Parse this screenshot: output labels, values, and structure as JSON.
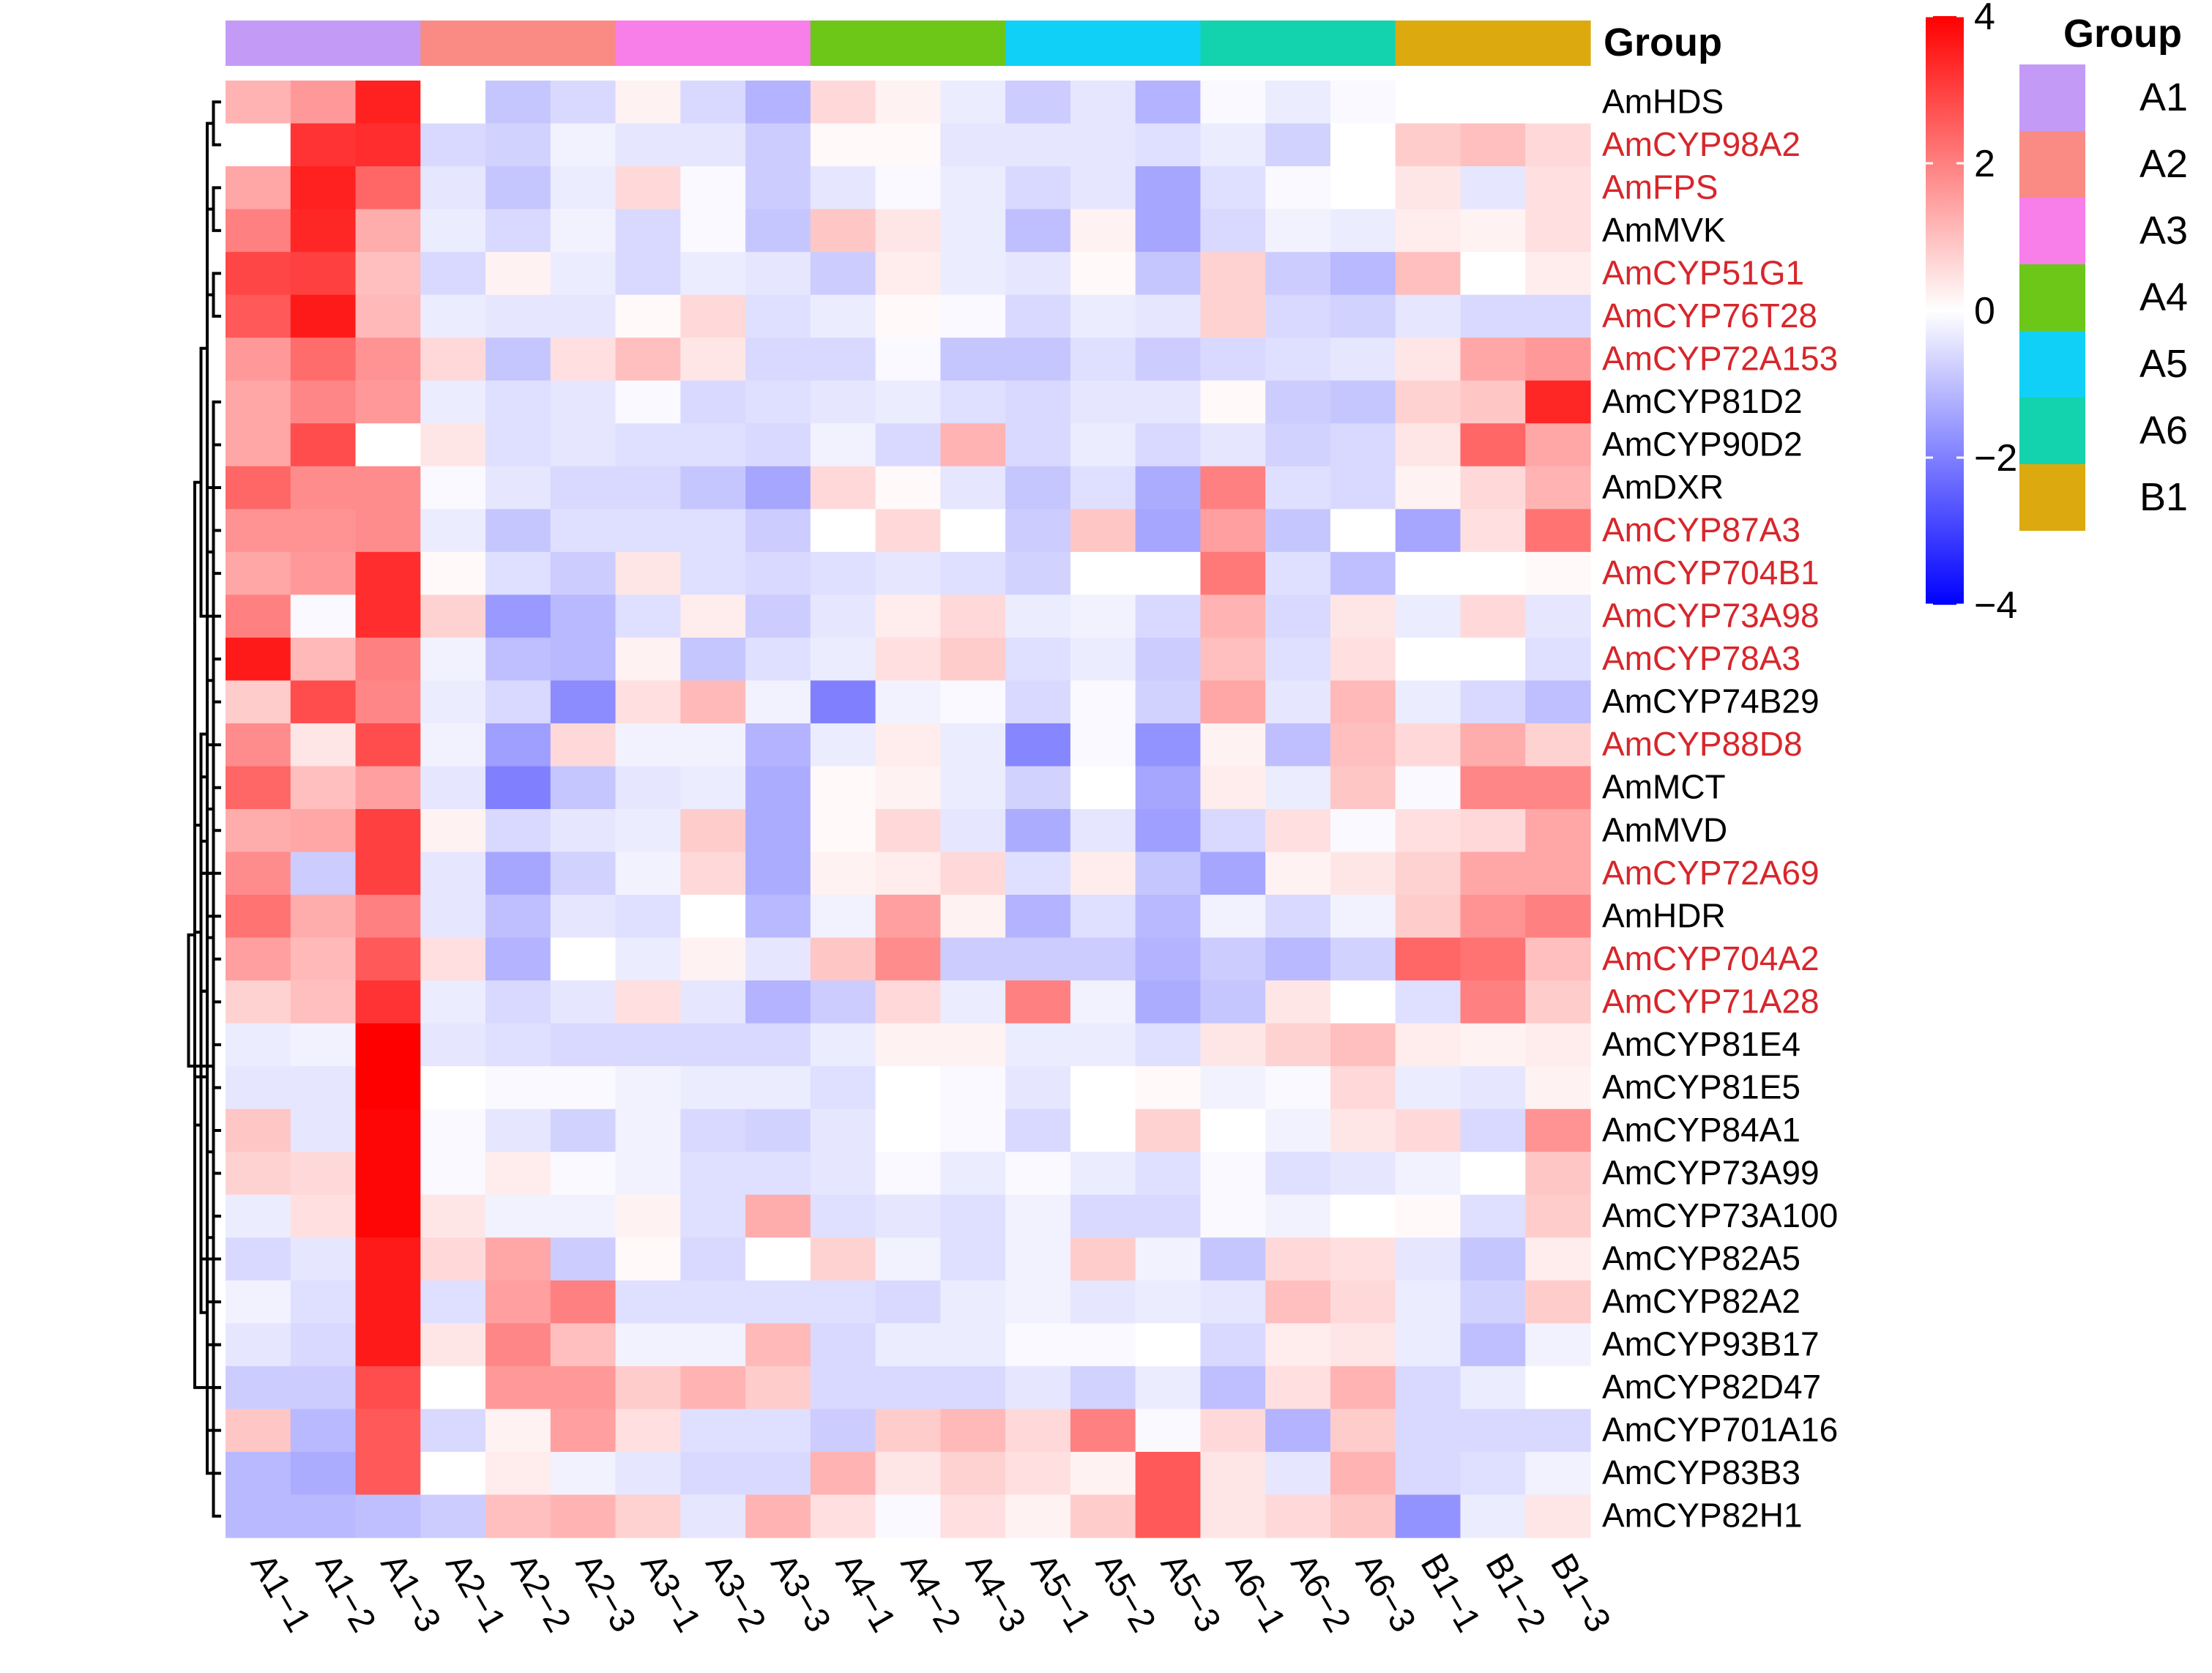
{
  "chart_data": {
    "type": "heatmap",
    "title": "",
    "annotation_title": "Group",
    "legend_title": "Group",
    "columns": [
      "A1−1",
      "A1−2",
      "A1−3",
      "A2−1",
      "A2−2",
      "A2−3",
      "A3−1",
      "A3−2",
      "A3−3",
      "A4−1",
      "A4−2",
      "A4−3",
      "A5−1",
      "A5−2",
      "A5−3",
      "A6−1",
      "A6−2",
      "A6−3",
      "B1−1",
      "B1−2",
      "B1−3"
    ],
    "column_groups": [
      "A1",
      "A1",
      "A1",
      "A2",
      "A2",
      "A2",
      "A3",
      "A3",
      "A3",
      "A4",
      "A4",
      "A4",
      "A5",
      "A5",
      "A5",
      "A6",
      "A6",
      "A6",
      "B1",
      "B1",
      "B1"
    ],
    "groups": [
      {
        "name": "A1",
        "color": "#C39BF7"
      },
      {
        "name": "A2",
        "color": "#F98B84"
      },
      {
        "name": "A3",
        "color": "#F87EEA"
      },
      {
        "name": "A4",
        "color": "#6CC718"
      },
      {
        "name": "A5",
        "color": "#10D0F8"
      },
      {
        "name": "A6",
        "color": "#13D3AE"
      },
      {
        "name": "B1",
        "color": "#DCAA0E"
      }
    ],
    "rows": [
      {
        "gene": "AmHDS",
        "highlight": false,
        "values": [
          1.2,
          1.6,
          3.5,
          0,
          -0.9,
          -0.6,
          0.2,
          -0.6,
          -1.2,
          0.6,
          0.2,
          -0.3,
          -0.8,
          -0.4,
          -1.2,
          -0.1,
          -0.3,
          -0.1,
          0,
          0,
          0
        ]
      },
      {
        "gene": "AmCYP98A2",
        "highlight": true,
        "values": [
          0,
          3.2,
          3.3,
          -0.6,
          -0.7,
          -0.2,
          -0.4,
          -0.4,
          -0.8,
          0.1,
          0.1,
          -0.4,
          -0.4,
          -0.4,
          -0.5,
          -0.3,
          -0.7,
          0,
          0.8,
          1.0,
          0.6
        ]
      },
      {
        "gene": "AmFPS",
        "highlight": true,
        "values": [
          1.4,
          3.5,
          2.4,
          -0.4,
          -0.9,
          -0.3,
          0.6,
          -0.1,
          -0.8,
          -0.4,
          -0.1,
          -0.3,
          -0.6,
          -0.4,
          -1.4,
          -0.5,
          -0.1,
          0,
          0.4,
          -0.4,
          0.5
        ]
      },
      {
        "gene": "AmMVK",
        "highlight": false,
        "values": [
          2.0,
          3.4,
          1.3,
          -0.3,
          -0.6,
          -0.2,
          -0.6,
          -0.1,
          -0.9,
          0.9,
          0.4,
          -0.3,
          -1.0,
          0.2,
          -1.4,
          -0.6,
          -0.2,
          -0.3,
          0.3,
          0.2,
          0.5
        ]
      },
      {
        "gene": "AmCYP51G1",
        "highlight": true,
        "values": [
          2.9,
          3.0,
          1.0,
          -0.6,
          0.2,
          -0.3,
          -0.6,
          -0.3,
          -0.4,
          -0.8,
          0.3,
          -0.3,
          -0.4,
          0.1,
          -0.9,
          0.7,
          -0.8,
          -1.1,
          1.0,
          0,
          0.3
        ]
      },
      {
        "gene": "AmCYP76T28",
        "highlight": true,
        "values": [
          2.6,
          3.6,
          1.1,
          -0.3,
          -0.4,
          -0.4,
          0.1,
          0.6,
          -0.5,
          -0.3,
          0.1,
          -0.1,
          -0.6,
          -0.3,
          -0.4,
          0.7,
          -0.6,
          -0.7,
          -0.4,
          -0.6,
          -0.6
        ]
      },
      {
        "gene": "AmCYP72A153",
        "highlight": true,
        "values": [
          1.6,
          2.3,
          1.7,
          0.6,
          -0.9,
          0.5,
          1.0,
          0.4,
          -0.6,
          -0.6,
          -0.1,
          -0.9,
          -0.9,
          -0.5,
          -0.8,
          -0.6,
          -0.5,
          -0.4,
          0.4,
          1.4,
          1.6
        ]
      },
      {
        "gene": "AmCYP81D2",
        "highlight": false,
        "values": [
          1.4,
          1.9,
          1.6,
          -0.3,
          -0.5,
          -0.4,
          -0.1,
          -0.6,
          -0.5,
          -0.4,
          -0.3,
          -0.5,
          -0.6,
          -0.4,
          -0.4,
          0.1,
          -0.8,
          -0.9,
          0.7,
          0.9,
          3.4
        ]
      },
      {
        "gene": "AmCYP90D2",
        "highlight": false,
        "values": [
          1.4,
          2.8,
          0,
          0.4,
          -0.5,
          -0.4,
          -0.5,
          -0.5,
          -0.6,
          -0.2,
          -0.6,
          1.2,
          -0.6,
          -0.3,
          -0.6,
          -0.4,
          -0.7,
          -0.6,
          0.4,
          2.4,
          1.4
        ]
      },
      {
        "gene": "AmDXR",
        "highlight": false,
        "values": [
          2.4,
          1.8,
          1.8,
          -0.1,
          -0.4,
          -0.6,
          -0.6,
          -0.9,
          -1.4,
          0.6,
          0.1,
          -0.4,
          -0.9,
          -0.5,
          -1.3,
          2.0,
          -0.5,
          -0.6,
          0.2,
          0.6,
          1.2
        ]
      },
      {
        "gene": "AmCYP87A3",
        "highlight": true,
        "values": [
          1.7,
          1.7,
          1.8,
          -0.3,
          -0.9,
          -0.5,
          -0.5,
          -0.5,
          -0.8,
          0,
          0.6,
          0,
          -0.8,
          0.9,
          -1.4,
          1.5,
          -0.9,
          0,
          -1.4,
          0.5,
          2.2
        ]
      },
      {
        "gene": "AmCYP704B1",
        "highlight": true,
        "values": [
          1.4,
          1.6,
          3.3,
          0.1,
          -0.5,
          -0.8,
          0.4,
          -0.5,
          -0.6,
          -0.5,
          -0.4,
          -0.5,
          -0.7,
          0,
          0,
          2.1,
          -0.5,
          -1.0,
          0,
          0,
          0.1
        ]
      },
      {
        "gene": "AmCYP73A98",
        "highlight": true,
        "values": [
          2.0,
          -0.1,
          3.3,
          0.7,
          -1.6,
          -1.1,
          -0.5,
          0.3,
          -0.8,
          -0.4,
          0.3,
          0.6,
          -0.3,
          -0.2,
          -0.6,
          1.2,
          -0.6,
          0.4,
          -0.3,
          0.6,
          -0.4
        ]
      },
      {
        "gene": "AmCYP78A3",
        "highlight": true,
        "values": [
          3.6,
          1.1,
          2.0,
          -0.2,
          -1.0,
          -1.1,
          0.2,
          -0.9,
          -0.5,
          -0.3,
          0.5,
          0.8,
          -0.5,
          -0.3,
          -0.8,
          1.0,
          -0.5,
          0.5,
          0,
          0,
          -0.5
        ]
      },
      {
        "gene": "AmCYP74B29",
        "highlight": false,
        "values": [
          0.8,
          2.8,
          1.9,
          -0.3,
          -0.6,
          -1.8,
          0.5,
          1.1,
          -0.2,
          -2.0,
          -0.2,
          -0.1,
          -0.6,
          -0.1,
          -0.7,
          1.4,
          -0.4,
          1.1,
          -0.3,
          -0.6,
          -1.0
        ]
      },
      {
        "gene": "AmCYP88D8",
        "highlight": true,
        "values": [
          1.8,
          0.4,
          2.8,
          -0.2,
          -1.5,
          0.6,
          -0.2,
          -0.2,
          -1.2,
          -0.3,
          0.3,
          -0.3,
          -1.9,
          -0.1,
          -1.7,
          0.2,
          -1.0,
          1.0,
          0.6,
          1.3,
          0.7
        ]
      },
      {
        "gene": "AmMCT",
        "highlight": false,
        "values": [
          2.4,
          1.0,
          1.5,
          -0.4,
          -2.0,
          -0.9,
          -0.4,
          -0.3,
          -1.3,
          0.1,
          0.2,
          -0.3,
          -0.7,
          0,
          -1.4,
          0.3,
          -0.3,
          0.9,
          -0.1,
          1.9,
          1.9
        ]
      },
      {
        "gene": "AmMVD",
        "highlight": false,
        "values": [
          1.3,
          1.4,
          3.0,
          0.2,
          -0.6,
          -0.4,
          -0.3,
          0.8,
          -1.3,
          0.1,
          0.6,
          -0.4,
          -1.3,
          -0.4,
          -1.5,
          -0.6,
          0.5,
          -0.1,
          0.5,
          0.6,
          1.4
        ]
      },
      {
        "gene": "AmCYP72A69",
        "highlight": true,
        "values": [
          1.8,
          -0.8,
          3.0,
          -0.4,
          -1.4,
          -0.7,
          -0.2,
          0.6,
          -1.3,
          0.2,
          0.3,
          0.6,
          -0.5,
          0.3,
          -0.9,
          -1.4,
          0.2,
          0.4,
          0.7,
          1.4,
          1.4
        ]
      },
      {
        "gene": "AmHDR",
        "highlight": false,
        "values": [
          2.2,
          1.3,
          2.0,
          -0.4,
          -1.0,
          -0.4,
          -0.5,
          0,
          -1.1,
          -0.2,
          1.5,
          0.2,
          -1.2,
          -0.5,
          -1.1,
          -0.2,
          -0.6,
          -0.2,
          0.8,
          1.7,
          2.0
        ]
      },
      {
        "gene": "AmCYP704A2",
        "highlight": true,
        "values": [
          1.5,
          1.1,
          2.6,
          0.5,
          -1.2,
          0,
          -0.3,
          0.2,
          -0.4,
          0.9,
          1.8,
          -0.8,
          -0.8,
          -0.8,
          -1.2,
          -0.8,
          -1.1,
          -0.7,
          2.4,
          2.2,
          1.0
        ]
      },
      {
        "gene": "AmCYP71A28",
        "highlight": true,
        "values": [
          0.7,
          1.0,
          3.2,
          -0.3,
          -0.6,
          -0.4,
          0.5,
          -0.4,
          -1.2,
          -0.8,
          0.6,
          -0.3,
          2.0,
          -0.2,
          -1.3,
          -0.9,
          0.4,
          0,
          -0.5,
          2.0,
          0.8
        ]
      },
      {
        "gene": "AmCYP81E4",
        "highlight": false,
        "values": [
          -0.3,
          -0.2,
          4.0,
          -0.4,
          -0.5,
          -0.6,
          -0.6,
          -0.6,
          -0.6,
          -0.3,
          0.2,
          0.2,
          -0.3,
          -0.3,
          -0.5,
          0.4,
          0.7,
          1.0,
          0.3,
          0.2,
          0.3
        ]
      },
      {
        "gene": "AmCYP81E5",
        "highlight": false,
        "values": [
          -0.4,
          -0.4,
          4.0,
          0,
          -0.1,
          -0.1,
          -0.2,
          -0.3,
          -0.3,
          -0.5,
          0,
          -0.1,
          -0.4,
          0,
          0.1,
          -0.2,
          -0.1,
          0.6,
          -0.3,
          -0.4,
          0.2
        ]
      },
      {
        "gene": "AmCYP84A1",
        "highlight": false,
        "values": [
          0.9,
          -0.4,
          3.9,
          -0.1,
          -0.4,
          -0.7,
          -0.2,
          -0.6,
          -0.7,
          -0.4,
          0,
          -0.1,
          -0.6,
          0,
          0.7,
          0,
          -0.2,
          0.4,
          0.6,
          -0.6,
          1.7
        ]
      },
      {
        "gene": "AmCYP73A99",
        "highlight": false,
        "values": [
          0.7,
          0.6,
          3.9,
          -0.1,
          0.3,
          -0.1,
          -0.2,
          -0.5,
          -0.5,
          -0.4,
          -0.1,
          -0.3,
          -0.1,
          -0.3,
          -0.5,
          -0.1,
          -0.5,
          -0.4,
          -0.2,
          0,
          0.9
        ]
      },
      {
        "gene": "AmCYP73A100",
        "highlight": false,
        "values": [
          -0.3,
          0.5,
          3.9,
          0.4,
          -0.2,
          -0.2,
          0.2,
          -0.5,
          1.3,
          -0.5,
          -0.4,
          -0.5,
          -0.2,
          -0.6,
          -0.6,
          -0.1,
          -0.2,
          0,
          0.1,
          -0.5,
          0.8
        ]
      },
      {
        "gene": "AmCYP82A5",
        "highlight": false,
        "values": [
          -0.6,
          -0.4,
          3.6,
          0.6,
          1.4,
          -0.8,
          0.1,
          -0.6,
          0,
          0.7,
          -0.2,
          -0.5,
          -0.2,
          0.8,
          -0.2,
          -0.9,
          0.6,
          0.5,
          -0.4,
          -0.9,
          0.3
        ]
      },
      {
        "gene": "AmCYP82A2",
        "highlight": false,
        "values": [
          -0.2,
          -0.5,
          3.6,
          -0.5,
          1.5,
          2.0,
          -0.5,
          -0.5,
          -0.5,
          -0.5,
          -0.6,
          -0.3,
          -0.2,
          -0.4,
          -0.3,
          -0.4,
          1.0,
          0.6,
          -0.3,
          -0.7,
          0.8
        ]
      },
      {
        "gene": "AmCYP93B17",
        "highlight": false,
        "values": [
          -0.4,
          -0.6,
          3.6,
          0.4,
          1.9,
          1.0,
          -0.2,
          -0.2,
          1.1,
          -0.6,
          -0.3,
          -0.3,
          -0.1,
          -0.1,
          0,
          -0.6,
          0.3,
          0.4,
          -0.3,
          -1.0,
          -0.2
        ]
      },
      {
        "gene": "AmCYP82D47",
        "highlight": false,
        "values": [
          -0.8,
          -0.8,
          2.8,
          0,
          1.6,
          1.6,
          0.8,
          1.2,
          0.8,
          -0.6,
          -0.6,
          -0.6,
          -0.4,
          -0.7,
          -0.3,
          -1.0,
          0.5,
          1.2,
          -0.6,
          -0.3,
          0
        ]
      },
      {
        "gene": "AmCYP701A16",
        "highlight": false,
        "values": [
          0.9,
          -1.1,
          2.6,
          -0.6,
          0.2,
          1.5,
          0.5,
          -0.5,
          -0.5,
          -0.8,
          0.8,
          1.1,
          0.6,
          2.0,
          -0.1,
          0.6,
          -1.2,
          0.8,
          -0.6,
          -0.6,
          -0.6
        ]
      },
      {
        "gene": "AmCYP83B3",
        "highlight": false,
        "values": [
          -1.1,
          -1.3,
          2.6,
          0,
          0.3,
          -0.2,
          -0.4,
          -0.6,
          -0.6,
          1.2,
          0.4,
          0.7,
          0.5,
          0.2,
          2.6,
          0.4,
          -0.4,
          1.2,
          -0.6,
          -0.5,
          -0.2
        ]
      },
      {
        "gene": "AmCYP82H1",
        "highlight": false,
        "values": [
          -1.1,
          -1.1,
          -1.0,
          -0.8,
          1.0,
          1.2,
          0.7,
          -0.4,
          1.2,
          0.5,
          -0.1,
          0.5,
          0.2,
          0.8,
          2.6,
          0.4,
          0.6,
          0.9,
          -1.7,
          -0.3,
          0.4
        ]
      }
    ],
    "color_scale": {
      "min": -4,
      "max": 4,
      "low_color": "#0000FF",
      "mid_color": "#FFFFFF",
      "high_color": "#FF0000",
      "ticks": [
        4,
        2,
        0,
        -2,
        -4
      ],
      "tick_labels": [
        "4",
        "2",
        "0",
        "−2",
        "−4"
      ]
    },
    "row_dendrogram": [
      [
        0,
        1
      ],
      [
        2,
        3
      ],
      [
        24,
        25
      ],
      [
        4,
        5
      ],
      [
        27,
        26
      ],
      [
        29,
        7
      ],
      [
        30,
        8
      ],
      [
        10,
        11
      ],
      [
        13,
        14
      ],
      [
        16,
        17
      ],
      [
        19,
        20
      ],
      [
        33,
        21
      ],
      [
        22,
        23
      ],
      [
        36,
        32
      ],
      [
        42,
        28
      ],
      [
        31,
        34
      ],
      [
        44,
        37
      ],
      [
        35,
        9
      ],
      [
        46,
        12
      ],
      [
        38,
        15
      ],
      [
        48,
        18
      ],
      [
        49,
        39
      ],
      [
        50,
        51
      ],
      [
        47,
        52
      ],
      [
        53,
        45
      ],
      [
        40,
        41
      ],
      [
        43,
        29
      ],
      [
        56,
        30
      ],
      [
        57,
        55
      ],
      [
        54,
        58
      ],
      [
        59,
        60
      ],
      [
        61,
        46
      ]
    ],
    "label_color_highlight": "#D7262B",
    "label_color_normal": "#000000"
  }
}
